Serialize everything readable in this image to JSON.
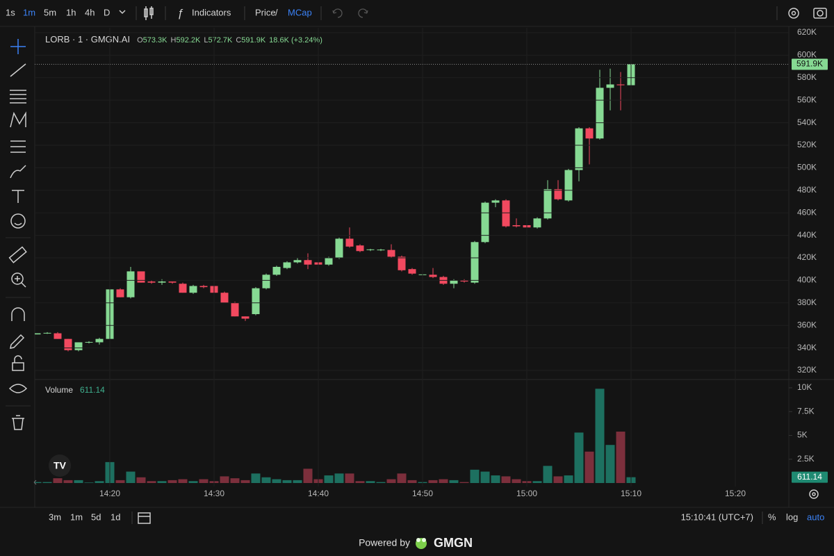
{
  "top_bar": {
    "intervals": [
      "1s",
      "1m",
      "5m",
      "1h",
      "4h",
      "D"
    ],
    "indicators": "Indicators",
    "price": "Price",
    "separator": "/",
    "mcap": "MCap"
  },
  "legend": {
    "symbol": "LORB · 1 · GMGN.AI",
    "ohlc": [
      {
        "label": "O",
        "value": "573.3K"
      },
      {
        "label": "H",
        "value": "592.2K"
      },
      {
        "label": "L",
        "value": "572.7K"
      },
      {
        "label": "C",
        "value": "591.9K"
      }
    ],
    "change": "18.6K (+3.24%)"
  },
  "chart_data": [
    {
      "type": "candlestick",
      "x": [
        "14:13",
        "14:14",
        "14:15",
        "14:16",
        "14:17",
        "14:18",
        "14:19",
        "14:20",
        "14:21",
        "14:22",
        "14:23",
        "14:24",
        "14:25",
        "14:26",
        "14:27",
        "14:28",
        "14:29",
        "14:30",
        "14:31",
        "14:32",
        "14:33",
        "14:34",
        "14:35",
        "14:36",
        "14:37",
        "14:38",
        "14:39",
        "14:40",
        "14:41",
        "14:42",
        "14:43",
        "14:44",
        "14:45",
        "14:46",
        "14:47",
        "14:48",
        "14:49",
        "14:50",
        "14:51",
        "14:52",
        "14:53",
        "14:54",
        "14:55",
        "14:56",
        "14:57",
        "14:58",
        "14:59",
        "15:00",
        "15:01",
        "15:02",
        "15:03",
        "15:04",
        "15:05",
        "15:06",
        "15:07",
        "15:08",
        "15:09",
        "15:10"
      ],
      "open": [
        352000,
        353000,
        353000,
        348000,
        338000,
        345000,
        345000,
        348000,
        392000,
        385000,
        408000,
        399000,
        398000,
        399000,
        397000,
        389000,
        395000,
        395000,
        389000,
        380000,
        368000,
        370000,
        393000,
        405000,
        411000,
        416000,
        418000,
        416000,
        414000,
        420000,
        437000,
        431000,
        427000,
        427000,
        427000,
        421000,
        410000,
        405000,
        405000,
        403000,
        397000,
        400000,
        398000,
        434000,
        469000,
        471000,
        449000,
        449000,
        447000,
        455000,
        481000,
        471000,
        498000,
        535000,
        526000,
        571000,
        574000,
        573300
      ],
      "high": [
        353000,
        354000,
        354000,
        348000,
        345000,
        346000,
        349000,
        393000,
        393000,
        412000,
        408000,
        400000,
        401000,
        399000,
        398000,
        396000,
        396000,
        396000,
        390000,
        381000,
        368000,
        394000,
        406000,
        413000,
        417000,
        420000,
        424000,
        417000,
        421000,
        438000,
        447000,
        432000,
        428000,
        428000,
        432000,
        422000,
        411000,
        406000,
        411000,
        404000,
        401000,
        401000,
        435000,
        470000,
        472000,
        472000,
        455000,
        450000,
        456000,
        489000,
        489000,
        499000,
        536000,
        536000,
        587000,
        588000,
        585000,
        592200
      ],
      "low": [
        352000,
        352500,
        348000,
        337000,
        337000,
        344000,
        343000,
        347000,
        385000,
        384000,
        398000,
        397000,
        396000,
        397000,
        389000,
        388000,
        393000,
        388000,
        380000,
        368000,
        364000,
        369000,
        392000,
        404000,
        410000,
        415000,
        410000,
        413000,
        413000,
        419000,
        429000,
        425000,
        426000,
        426000,
        420000,
        408000,
        405000,
        404000,
        402000,
        396000,
        393000,
        398000,
        397000,
        433000,
        465000,
        447000,
        447000,
        446000,
        446000,
        454000,
        471000,
        470000,
        488000,
        503000,
        525000,
        551000,
        551000,
        572700
      ],
      "close": [
        353000,
        353400,
        348000,
        338000,
        345000,
        345300,
        348000,
        392000,
        385000,
        408000,
        398000,
        398000,
        399000,
        398000,
        389000,
        395000,
        394000,
        389000,
        380000,
        368000,
        366000,
        393000,
        405000,
        412000,
        416000,
        418000,
        414000,
        414000,
        420000,
        437000,
        430000,
        426000,
        427500,
        427300,
        421000,
        409000,
        406000,
        405300,
        403000,
        397000,
        400000,
        399000,
        434000,
        469000,
        471000,
        448000,
        448000,
        447000,
        455000,
        481000,
        472000,
        498000,
        535000,
        526000,
        571000,
        574000,
        573300,
        591900
      ],
      "up_color": "#86d993",
      "down_color": "#f2495f",
      "ylim": [
        312600,
        624300
      ],
      "yticks": [
        {
          "value": 320000,
          "label": "320K"
        },
        {
          "value": 340000,
          "label": "340K"
        },
        {
          "value": 360000,
          "label": "360K"
        },
        {
          "value": 380000,
          "label": "380K"
        },
        {
          "value": 400000,
          "label": "400K"
        },
        {
          "value": 420000,
          "label": "420K"
        },
        {
          "value": 440000,
          "label": "440K"
        },
        {
          "value": 460000,
          "label": "460K"
        },
        {
          "value": 480000,
          "label": "480K"
        },
        {
          "value": 500000,
          "label": "500K"
        },
        {
          "value": 520000,
          "label": "520K"
        },
        {
          "value": 540000,
          "label": "540K"
        },
        {
          "value": 560000,
          "label": "560K"
        },
        {
          "value": 580000,
          "label": "580K"
        },
        {
          "value": 600000,
          "label": "600K"
        },
        {
          "value": 620000,
          "label": "620K"
        }
      ],
      "xticks": [
        "14:20",
        "14:30",
        "14:40",
        "15:00",
        "15:10",
        "15:20",
        "14:50"
      ],
      "last_label": "591.9K",
      "grid": true
    },
    {
      "type": "bar",
      "title": "Volume",
      "values": [
        100,
        100,
        500,
        300,
        300,
        50,
        200,
        2200,
        300,
        1200,
        600,
        200,
        200,
        300,
        400,
        200,
        400,
        200,
        700,
        500,
        300,
        1000,
        600,
        400,
        300,
        300,
        1500,
        400,
        800,
        1000,
        1000,
        200,
        200,
        100,
        400,
        1000,
        300,
        100,
        300,
        400,
        300,
        100,
        1400,
        1200,
        800,
        700,
        400,
        200,
        200,
        1800,
        700,
        800,
        5300,
        3300,
        9900,
        4000,
        5400,
        611.14
      ],
      "up_color": "#1d7060",
      "down_color": "#7c2f3c",
      "ylim": [
        0,
        10730
      ],
      "yticks": [
        {
          "value": 2500,
          "label": "2.5K"
        },
        {
          "value": 5000,
          "label": "5K"
        },
        {
          "value": 7500,
          "label": "7.5K"
        },
        {
          "value": 10000,
          "label": "10K"
        }
      ],
      "last_label": "611.14"
    }
  ],
  "bottom_bar": {
    "ranges": [
      "3m",
      "1m",
      "5d",
      "1d"
    ],
    "clock": "15:10:41 (UTC+7)",
    "modes": [
      "%",
      "log",
      "auto"
    ]
  },
  "footer": {
    "powered_by": "Powered by",
    "brand": "GMGN"
  }
}
